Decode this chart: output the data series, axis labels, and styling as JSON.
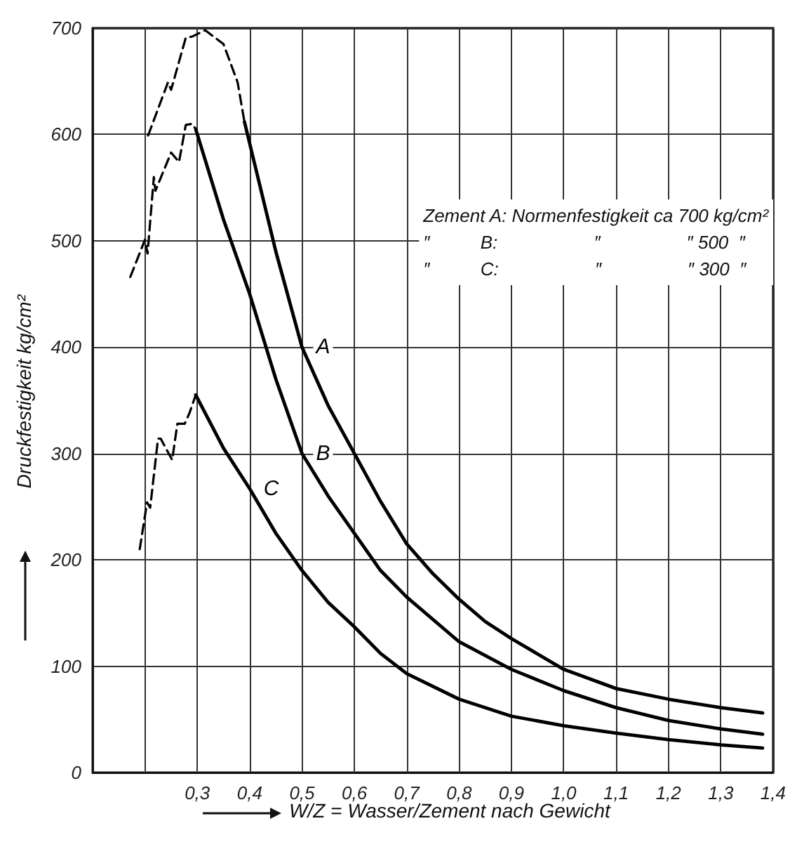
{
  "chart_data": {
    "type": "line",
    "xlabel": "W/Z = Wasser/Zement nach Gewicht",
    "ylabel": "Druckfestigkeit kg/cm²",
    "xlim": [
      0.1,
      1.4
    ],
    "ylim": [
      0,
      700
    ],
    "xticks": [
      {
        "value": 0.1,
        "label": null
      },
      {
        "value": 0.2,
        "label": null
      },
      {
        "value": 0.3,
        "label": "0,3"
      },
      {
        "value": 0.4,
        "label": "0,4"
      },
      {
        "value": 0.5,
        "label": "0,5"
      },
      {
        "value": 0.6,
        "label": "0,6"
      },
      {
        "value": 0.7,
        "label": "0,7"
      },
      {
        "value": 0.8,
        "label": "0,8"
      },
      {
        "value": 0.9,
        "label": "0,9"
      },
      {
        "value": 1.0,
        "label": "1,0"
      },
      {
        "value": 1.1,
        "label": "1,1"
      },
      {
        "value": 1.2,
        "label": "1,2"
      },
      {
        "value": 1.3,
        "label": "1,3"
      },
      {
        "value": 1.4,
        "label": "1,4"
      }
    ],
    "yticks": [
      0,
      100,
      200,
      300,
      400,
      500,
      600,
      700
    ],
    "grid": true,
    "marker": "none",
    "series": [
      {
        "name": "A",
        "color": "#000000",
        "line_style": "solid",
        "x": [
          0.39,
          0.45,
          0.5,
          0.55,
          0.6,
          0.65,
          0.7,
          0.75,
          0.8,
          0.85,
          0.9,
          1.0,
          1.1,
          1.2,
          1.3,
          1.38
        ],
        "values": [
          612,
          490,
          400,
          345,
          300,
          255,
          215,
          187,
          163,
          142,
          126,
          97,
          79,
          69,
          61,
          56
        ]
      },
      {
        "color": "#000000",
        "line_style": "dashed",
        "x": [
          0.206,
          0.244,
          0.25,
          0.278,
          0.29,
          0.315,
          0.35,
          0.377,
          0.39
        ],
        "values": [
          599,
          649,
          642,
          691,
          692,
          698,
          685,
          649,
          612
        ]
      },
      {
        "name": "B",
        "color": "#000000",
        "line_style": "solid",
        "x": [
          0.297,
          0.35,
          0.4,
          0.45,
          0.5,
          0.55,
          0.6,
          0.65,
          0.7,
          0.8,
          0.9,
          1.0,
          1.1,
          1.2,
          1.3,
          1.38
        ],
        "values": [
          605,
          520,
          450,
          370,
          300,
          260,
          225,
          190,
          165,
          123,
          97,
          77,
          61,
          49,
          41,
          36
        ]
      },
      {
        "color": "#000000",
        "line_style": "dashed",
        "x": [
          0.172,
          0.2,
          0.205,
          0.217,
          0.22,
          0.25,
          0.265,
          0.278,
          0.29,
          0.297
        ],
        "values": [
          466,
          501,
          488,
          560,
          547,
          583,
          574,
          609,
          610,
          605
        ]
      },
      {
        "name": "C",
        "color": "#000000",
        "line_style": "solid",
        "x": [
          0.297,
          0.35,
          0.4,
          0.45,
          0.5,
          0.55,
          0.6,
          0.65,
          0.7,
          0.8,
          0.9,
          1.0,
          1.1,
          1.2,
          1.3,
          1.38
        ],
        "values": [
          355,
          305,
          267,
          225,
          190,
          160,
          137,
          112,
          93,
          69,
          53,
          44,
          37,
          31,
          26,
          23
        ]
      },
      {
        "color": "#000000",
        "line_style": "dashed",
        "x": [
          0.19,
          0.204,
          0.21,
          0.225,
          0.23,
          0.252,
          0.262,
          0.276,
          0.285,
          0.297
        ],
        "values": [
          210,
          254,
          249,
          314,
          314,
          294,
          328,
          328,
          338,
          355
        ]
      }
    ],
    "annotations": [
      "Zement A: Normenfestigkeit ca 700 kg/cm²",
      "″          B:                   ″                 ″ 500  ″",
      "″          C:                   ″                 ″ 300  ″"
    ]
  }
}
